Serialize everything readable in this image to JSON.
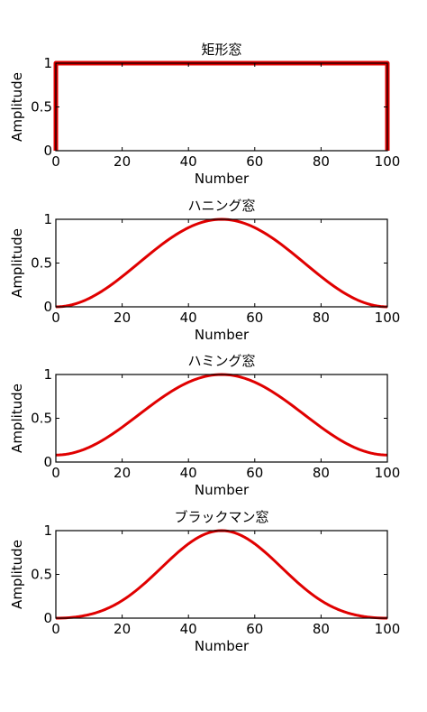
{
  "chart_data": [
    {
      "type": "line",
      "window": "rect",
      "title": "矩形窓",
      "xlabel": "Number",
      "ylabel": "Amplitude",
      "xlim": [
        0,
        100
      ],
      "ylim": [
        0,
        1
      ],
      "xticks": [
        "0",
        "20",
        "40",
        "60",
        "80",
        "100"
      ],
      "yticks": [
        "0",
        "0.5",
        "1"
      ],
      "grid": false,
      "series": [
        {
          "color": "#e00000",
          "n_points": 101,
          "x": [
            0,
            1,
            99,
            100
          ],
          "y": [
            0,
            1,
            1,
            0
          ]
        }
      ]
    },
    {
      "type": "line",
      "window": "hann",
      "title": "ハニング窓",
      "xlabel": "Number",
      "ylabel": "Amplitude",
      "xlim": [
        0,
        100
      ],
      "ylim": [
        0,
        1
      ],
      "xticks": [
        "0",
        "20",
        "40",
        "60",
        "80",
        "100"
      ],
      "yticks": [
        "0",
        "0.5",
        "1"
      ],
      "grid": false,
      "series": [
        {
          "color": "#e00000",
          "n_points": 101,
          "x": [
            0,
            10,
            20,
            30,
            40,
            50,
            60,
            70,
            80,
            90,
            100
          ],
          "y": [
            0,
            0.1,
            0.35,
            0.65,
            0.9,
            1.0,
            0.9,
            0.65,
            0.35,
            0.1,
            0
          ]
        }
      ]
    },
    {
      "type": "line",
      "window": "hamming",
      "title": "ハミング窓",
      "xlabel": "Number",
      "ylabel": "Amplitude",
      "xlim": [
        0,
        100
      ],
      "ylim": [
        0,
        1
      ],
      "xticks": [
        "0",
        "20",
        "40",
        "60",
        "80",
        "100"
      ],
      "yticks": [
        "0",
        "0.5",
        "1"
      ],
      "grid": false,
      "series": [
        {
          "color": "#e00000",
          "n_points": 101,
          "x": [
            0,
            10,
            20,
            30,
            40,
            50,
            60,
            70,
            80,
            90,
            100
          ],
          "y": [
            0.08,
            0.17,
            0.4,
            0.68,
            0.91,
            1.0,
            0.91,
            0.68,
            0.4,
            0.17,
            0.08
          ]
        }
      ]
    },
    {
      "type": "line",
      "window": "blackman",
      "title": "ブラックマン窓",
      "xlabel": "Number",
      "ylabel": "Amplitude",
      "xlim": [
        0,
        100
      ],
      "ylim": [
        0,
        1
      ],
      "xticks": [
        "0",
        "20",
        "40",
        "60",
        "80",
        "100"
      ],
      "yticks": [
        "0",
        "0.5",
        "1"
      ],
      "grid": false,
      "series": [
        {
          "color": "#e00000",
          "n_points": 101,
          "x": [
            0,
            10,
            20,
            30,
            40,
            50,
            60,
            70,
            80,
            90,
            100
          ],
          "y": [
            0,
            0.04,
            0.16,
            0.41,
            0.79,
            1.0,
            0.79,
            0.41,
            0.16,
            0.04,
            0
          ]
        }
      ]
    }
  ]
}
